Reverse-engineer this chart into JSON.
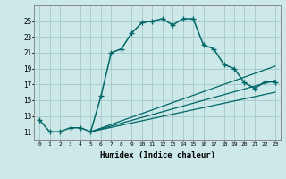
{
  "xlabel": "Humidex (Indice chaleur)",
  "ylabel": "",
  "bg_color": "#cce8e8",
  "grid_color": "#aacccc",
  "line_color": "#006666",
  "xlim": [
    -0.5,
    23.5
  ],
  "ylim": [
    10.0,
    27.0
  ],
  "xticks": [
    0,
    1,
    2,
    3,
    4,
    5,
    6,
    7,
    8,
    9,
    10,
    11,
    12,
    13,
    14,
    15,
    16,
    17,
    18,
    19,
    20,
    21,
    22,
    23
  ],
  "yticks": [
    11,
    13,
    15,
    17,
    19,
    21,
    23,
    25
  ],
  "line1_x": [
    0,
    1,
    2,
    3,
    4,
    5,
    6,
    7,
    8,
    9,
    10,
    11,
    12,
    13,
    14,
    15,
    16,
    17,
    18,
    19,
    20,
    21,
    22,
    23
  ],
  "line1_y": [
    12.5,
    11.0,
    11.0,
    11.5,
    11.5,
    11.0,
    15.5,
    21.0,
    21.5,
    23.5,
    24.8,
    25.0,
    25.3,
    24.5,
    25.3,
    25.3,
    22.0,
    21.5,
    19.5,
    19.0,
    17.2,
    16.5,
    17.3,
    17.3
  ],
  "line2_x": [
    5,
    23
  ],
  "line2_y": [
    11.0,
    19.3
  ],
  "line3_x": [
    5,
    23
  ],
  "line3_y": [
    11.0,
    17.5
  ],
  "line4_x": [
    5,
    23
  ],
  "line4_y": [
    11.0,
    16.0
  ]
}
